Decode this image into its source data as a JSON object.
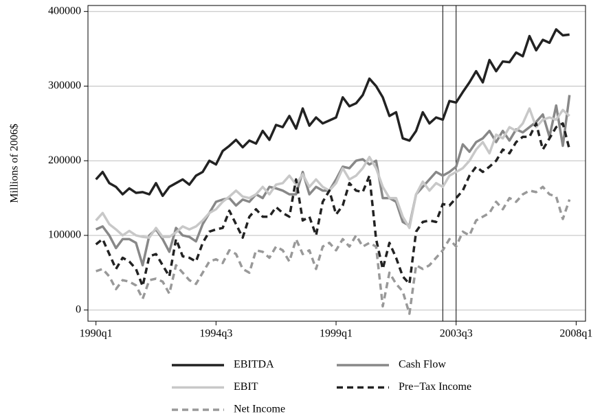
{
  "chart_data": {
    "type": "line",
    "y_label": "Millions of 2006$",
    "x": [
      120,
      121,
      122,
      123,
      124,
      125,
      126,
      127,
      128,
      129,
      130,
      131,
      132,
      133,
      134,
      135,
      136,
      137,
      138,
      139,
      140,
      141,
      142,
      143,
      144,
      145,
      146,
      147,
      148,
      149,
      150,
      151,
      152,
      153,
      154,
      155,
      156,
      157,
      158,
      159,
      160,
      161,
      162,
      163,
      164,
      165,
      166,
      167,
      168,
      169,
      170,
      171,
      172,
      173,
      174,
      175,
      176,
      177,
      178,
      179,
      180,
      181,
      182,
      183,
      184,
      185,
      186,
      187,
      188,
      189,
      190,
      191
    ],
    "xlim": [
      118.8,
      193.4
    ],
    "xticks": [
      {
        "value": 120,
        "label": "1990q1"
      },
      {
        "value": 138,
        "label": "1994q3"
      },
      {
        "value": 156,
        "label": "1999q1"
      },
      {
        "value": 174,
        "label": "2003q3"
      },
      {
        "value": 192,
        "label": "2008q1"
      }
    ],
    "ylim": [
      -15000,
      408000
    ],
    "yticks": [
      0,
      100000,
      200000,
      300000,
      400000
    ],
    "grid": true,
    "vlines": [
      172,
      174
    ],
    "series": [
      {
        "name": "EBITDA",
        "color": "#222222",
        "style": "solid",
        "values": [
          175000,
          185000,
          170000,
          165000,
          155000,
          163000,
          157000,
          158000,
          155000,
          170000,
          153000,
          165000,
          170000,
          175000,
          168000,
          180000,
          185000,
          200000,
          195000,
          213000,
          220000,
          228000,
          218000,
          227000,
          223000,
          240000,
          228000,
          248000,
          245000,
          260000,
          243000,
          270000,
          247000,
          258000,
          250000,
          254000,
          258000,
          285000,
          273000,
          277000,
          288000,
          310000,
          300000,
          285000,
          260000,
          265000,
          230000,
          227000,
          240000,
          265000,
          250000,
          258000,
          255000,
          280000,
          278000,
          292000,
          305000,
          320000,
          305000,
          335000,
          320000,
          333000,
          332000,
          345000,
          340000,
          367000,
          348000,
          362000,
          358000,
          376000,
          368000,
          369000
        ]
      },
      {
        "name": "Cash Flow",
        "color": "#888888",
        "style": "solid",
        "values": [
          108000,
          112000,
          100000,
          83000,
          95000,
          95000,
          90000,
          60000,
          100000,
          108000,
          95000,
          78000,
          110000,
          100000,
          98000,
          92000,
          115000,
          130000,
          145000,
          148000,
          150000,
          140000,
          148000,
          145000,
          155000,
          150000,
          165000,
          163000,
          160000,
          155000,
          155000,
          185000,
          155000,
          165000,
          160000,
          160000,
          175000,
          192000,
          190000,
          200000,
          202000,
          195000,
          200000,
          150000,
          150000,
          145000,
          118000,
          113000,
          155000,
          165000,
          175000,
          185000,
          180000,
          185000,
          192000,
          222000,
          212000,
          225000,
          230000,
          240000,
          225000,
          240000,
          227000,
          242000,
          238000,
          245000,
          252000,
          262000,
          232000,
          274000,
          220000,
          288000
        ]
      },
      {
        "name": "EBIT",
        "color": "#c8c8c8",
        "style": "solid",
        "values": [
          120000,
          130000,
          115000,
          108000,
          100000,
          106000,
          100000,
          98000,
          97000,
          110000,
          98000,
          98000,
          104000,
          112000,
          108000,
          112000,
          120000,
          130000,
          135000,
          145000,
          152000,
          160000,
          152000,
          150000,
          155000,
          165000,
          155000,
          168000,
          170000,
          180000,
          168000,
          182000,
          165000,
          175000,
          165000,
          160000,
          170000,
          190000,
          175000,
          180000,
          190000,
          205000,
          190000,
          165000,
          150000,
          150000,
          125000,
          110000,
          155000,
          172000,
          160000,
          170000,
          165000,
          180000,
          185000,
          190000,
          200000,
          215000,
          225000,
          210000,
          235000,
          230000,
          245000,
          240000,
          250000,
          270000,
          245000,
          255000,
          258000,
          255000,
          268000,
          260000
        ]
      },
      {
        "name": "Pre−Tax Income",
        "color": "#222222",
        "style": "dashed",
        "values": [
          88000,
          95000,
          75000,
          55000,
          70000,
          65000,
          55000,
          32000,
          72000,
          75000,
          60000,
          45000,
          95000,
          72000,
          70000,
          65000,
          90000,
          105000,
          108000,
          110000,
          133000,
          115000,
          97000,
          125000,
          135000,
          125000,
          125000,
          138000,
          130000,
          125000,
          175000,
          120000,
          125000,
          100000,
          145000,
          160000,
          128000,
          140000,
          170000,
          160000,
          158000,
          180000,
          95000,
          55000,
          90000,
          70000,
          45000,
          35000,
          105000,
          118000,
          120000,
          118000,
          142000,
          140000,
          150000,
          160000,
          180000,
          192000,
          185000,
          192000,
          200000,
          215000,
          210000,
          225000,
          232000,
          232000,
          250000,
          215000,
          230000,
          245000,
          250000,
          215000
        ]
      },
      {
        "name": "Net Income",
        "color": "#999999",
        "style": "dashed",
        "values": [
          52000,
          55000,
          45000,
          28000,
          40000,
          38000,
          33000,
          15000,
          40000,
          42000,
          38000,
          22000,
          60000,
          50000,
          40000,
          35000,
          50000,
          65000,
          68000,
          63000,
          80000,
          75000,
          55000,
          50000,
          80000,
          78000,
          70000,
          85000,
          80000,
          65000,
          95000,
          75000,
          80000,
          55000,
          85000,
          90000,
          80000,
          95000,
          85000,
          100000,
          85000,
          90000,
          85000,
          5000,
          50000,
          35000,
          25000,
          -5000,
          60000,
          55000,
          60000,
          70000,
          80000,
          95000,
          85000,
          105000,
          100000,
          120000,
          125000,
          130000,
          145000,
          135000,
          150000,
          145000,
          155000,
          160000,
          158000,
          165000,
          155000,
          152000,
          122000,
          148000
        ]
      }
    ]
  }
}
